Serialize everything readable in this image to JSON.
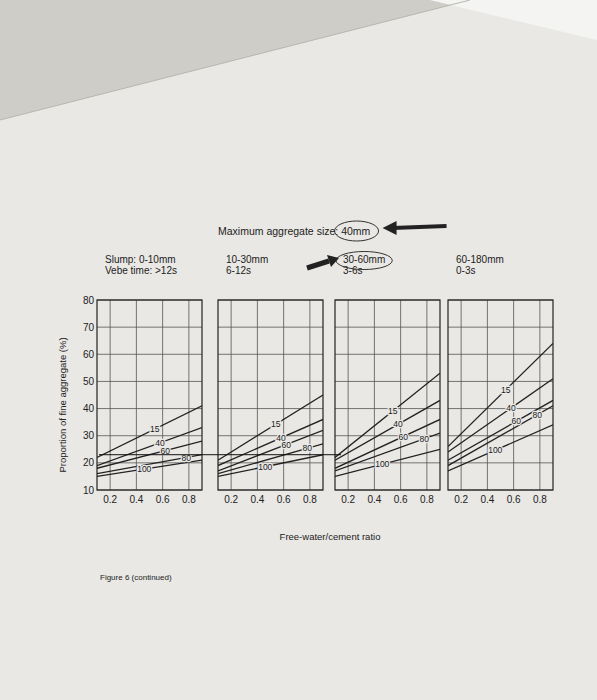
{
  "figure": {
    "title": "Maximum aggregate size: 40mm",
    "xlabel": "Free-water/cement ratio",
    "ylabel": "Proportion of fine aggregate (%)",
    "caption": "Figure 6 (continued)",
    "reading_y": 23
  },
  "chart_data": [
    {
      "type": "line",
      "title": "Slump: 0-10mm",
      "subtitle": "Vebe time: >12s",
      "x": [
        0.1,
        0.9
      ],
      "xlim": [
        0.1,
        0.9
      ],
      "xticks": [
        0.2,
        0.4,
        0.6,
        0.8
      ],
      "ylim": [
        10,
        80
      ],
      "yticks": [
        10,
        20,
        30,
        40,
        50,
        60,
        70,
        80
      ],
      "grid": true,
      "color": "#222222",
      "series": [
        {
          "name": "15",
          "values": [
            22,
            41
          ]
        },
        {
          "name": "40",
          "values": [
            19,
            33
          ]
        },
        {
          "name": "60",
          "values": [
            18,
            28
          ]
        },
        {
          "name": "80",
          "values": [
            16,
            23
          ]
        },
        {
          "name": "100",
          "values": [
            15,
            21
          ]
        }
      ]
    },
    {
      "type": "line",
      "title": "10-30mm",
      "subtitle": "6-12s",
      "x": [
        0.1,
        0.9
      ],
      "xlim": [
        0.1,
        0.9
      ],
      "xticks": [
        0.2,
        0.4,
        0.6,
        0.8
      ],
      "ylim": [
        10,
        80
      ],
      "yticks": [
        10,
        20,
        30,
        40,
        50,
        60,
        70,
        80
      ],
      "grid": true,
      "tick_labels": "x",
      "color": "#222222",
      "series": [
        {
          "name": "15",
          "values": [
            21,
            45
          ]
        },
        {
          "name": "40",
          "values": [
            19,
            36
          ]
        },
        {
          "name": "60",
          "values": [
            17,
            32
          ]
        },
        {
          "name": "80",
          "values": [
            16,
            27
          ]
        },
        {
          "name": "100",
          "values": [
            15,
            23
          ]
        }
      ]
    },
    {
      "type": "line",
      "title": "30-60mm",
      "subtitle": "3-6s",
      "x": [
        0.1,
        0.9
      ],
      "xlim": [
        0.1,
        0.9
      ],
      "xticks": [
        0.2,
        0.4,
        0.6,
        0.8
      ],
      "ylim": [
        10,
        80
      ],
      "yticks": [
        10,
        20,
        30,
        40,
        50,
        60,
        70,
        80
      ],
      "grid": true,
      "tick_labels": "x",
      "color": "#222222",
      "series": [
        {
          "name": "15",
          "values": [
            22,
            53
          ]
        },
        {
          "name": "40",
          "values": [
            21,
            43
          ]
        },
        {
          "name": "60",
          "values": [
            18,
            36
          ]
        },
        {
          "name": "80",
          "values": [
            17,
            31
          ]
        },
        {
          "name": "100",
          "values": [
            15,
            25
          ]
        }
      ]
    },
    {
      "type": "line",
      "title": "60-180mm",
      "subtitle": "0-3s",
      "x": [
        0.1,
        0.9
      ],
      "xlim": [
        0.1,
        0.9
      ],
      "xticks": [
        0.2,
        0.4,
        0.6,
        0.8
      ],
      "ylim": [
        10,
        80
      ],
      "yticks": [
        10,
        20,
        30,
        40,
        50,
        60,
        70,
        80
      ],
      "grid": true,
      "tick_labels": "x",
      "color": "#222222",
      "series": [
        {
          "name": "15",
          "values": [
            26,
            64
          ]
        },
        {
          "name": "40",
          "values": [
            24,
            51
          ]
        },
        {
          "name": "60",
          "values": [
            21,
            43
          ]
        },
        {
          "name": "80",
          "values": [
            19,
            41
          ]
        },
        {
          "name": "100",
          "values": [
            17,
            34
          ]
        }
      ]
    }
  ]
}
